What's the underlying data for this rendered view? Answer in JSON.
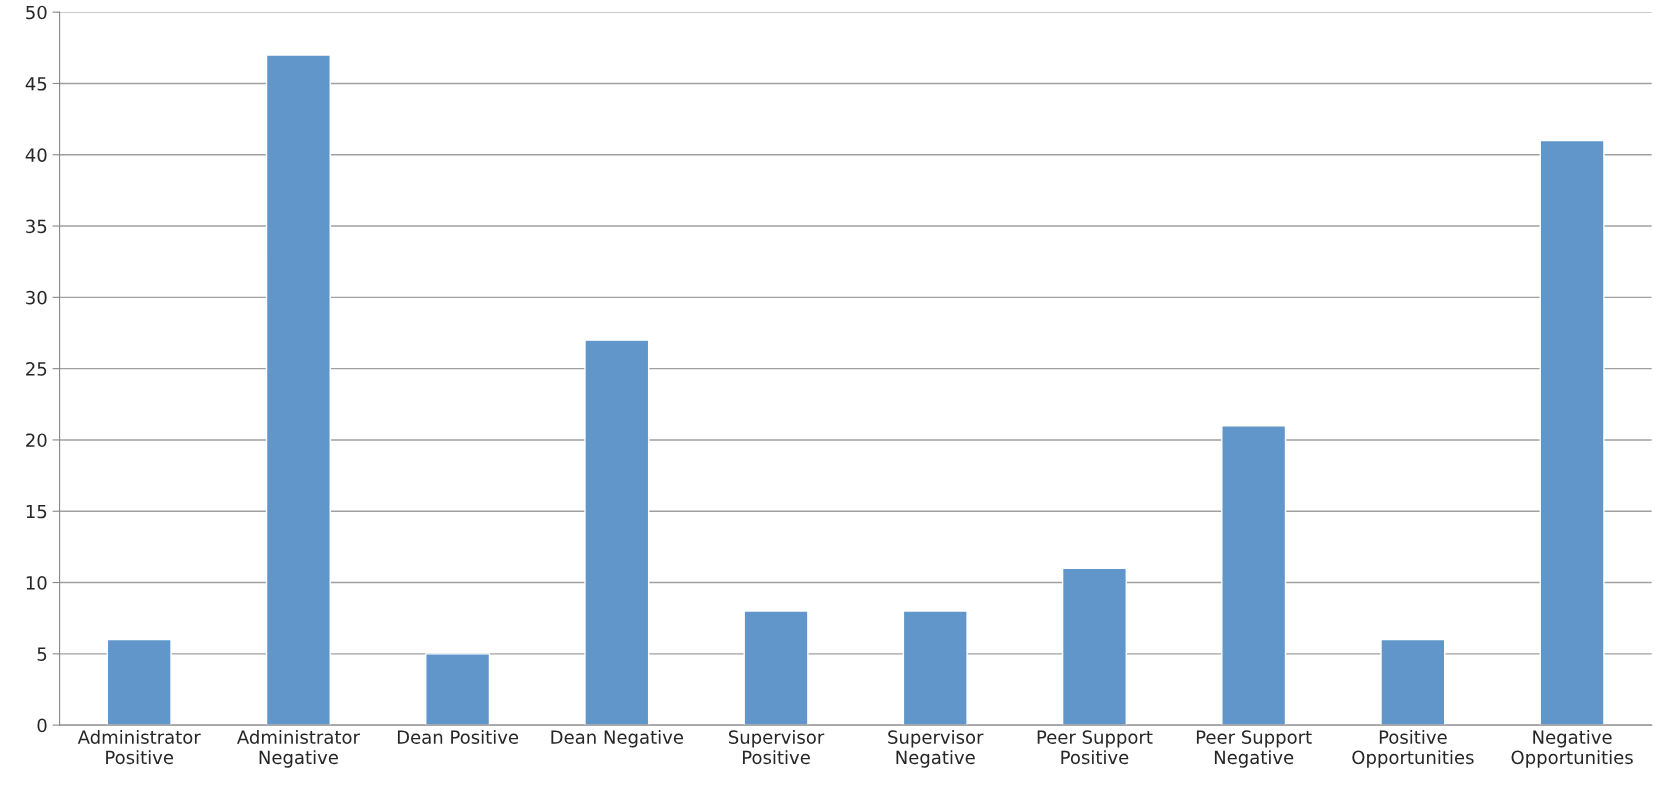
{
  "chart_data": {
    "type": "bar",
    "categories": [
      "Administrator\nPositive",
      "Administrator\nNegative",
      "Dean Positive",
      "Dean Negative",
      "Supervisor\nPositive",
      "Supervisor\nNegative",
      "Peer Support\nPositive",
      "Peer Support\nNegative",
      "Positive\nOpportunities",
      "Negative\nOpportunities"
    ],
    "values": [
      6,
      47,
      5,
      27,
      8,
      8,
      11,
      21,
      6,
      41
    ],
    "color": "#6096c9",
    "ylim": [
      0,
      50
    ],
    "yticks": [
      0,
      5,
      10,
      15,
      20,
      25,
      30,
      35,
      40,
      45,
      50
    ],
    "grid": "y"
  }
}
